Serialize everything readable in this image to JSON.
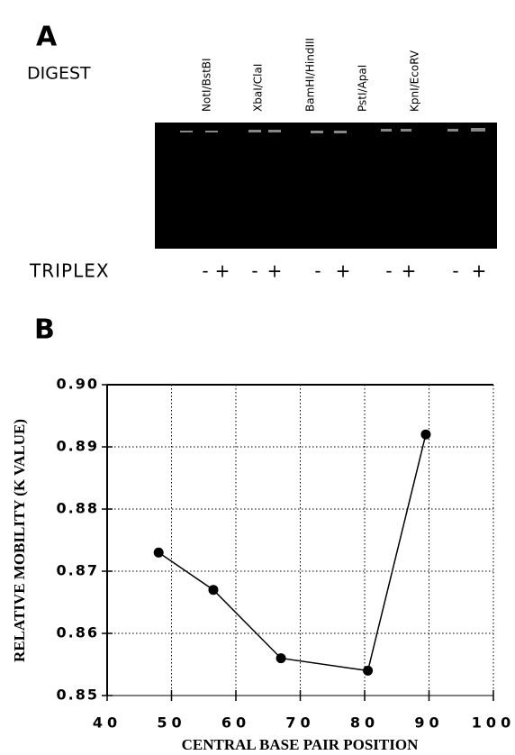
{
  "panel_a": {
    "label": "A",
    "digest_label": "DIGEST",
    "lanes": [
      "NotI/BstBI",
      "XbaI/ClaI",
      "BamHI/HindIII",
      "PstI/ApaI",
      "KpnI/EcoRV"
    ],
    "triplex_label": "TRIPLEX",
    "triplex_signs": [
      "-",
      "+",
      "-",
      "+",
      "-",
      "+",
      "-",
      "+",
      "-",
      "+"
    ]
  },
  "chart_data": {
    "type": "line",
    "panel_label": "B",
    "x_label": "CENTRAL BASE PAIR POSITION",
    "y_label": "RELATIVE MOBILITY (K VALUE)",
    "x": [
      48,
      56.5,
      67,
      80.5,
      89.5
    ],
    "values": [
      0.873,
      0.867,
      0.856,
      0.854,
      0.892
    ],
    "color": "#000000",
    "xlim": [
      40,
      100
    ],
    "xticks": [
      40,
      50,
      60,
      70,
      80,
      90,
      100
    ],
    "ylim": [
      0.85,
      0.9
    ],
    "yticks": [
      0.85,
      0.86,
      0.87,
      0.88,
      0.89,
      {
        "value": 0.9,
        "label": "0.90"
      }
    ],
    "grid": true
  }
}
